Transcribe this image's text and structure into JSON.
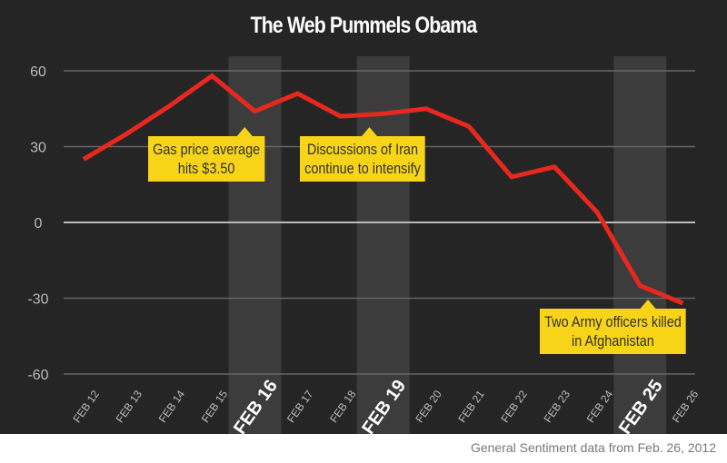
{
  "chart_data": {
    "type": "line",
    "title": "The Web Pummels Obama",
    "categories": [
      "FEB 12",
      "FEB 13",
      "FEB 14",
      "FEB 15",
      "FEB 16",
      "FEB 17",
      "FEB 18",
      "FEB 19",
      "FEB 20",
      "FEB 21",
      "FEB 22",
      "FEB 23",
      "FEB 24",
      "FEB 25",
      "FEB 26"
    ],
    "values": [
      25,
      35,
      46,
      58,
      44,
      51,
      42,
      43,
      45,
      38,
      18,
      22,
      4,
      -25,
      -32
    ],
    "highlighted": [
      "FEB 16",
      "FEB 19",
      "FEB 25"
    ],
    "yticks": [
      60,
      30,
      0,
      -30,
      -60
    ],
    "ylim": [
      -60,
      60
    ],
    "grid": true,
    "line_color": "#e8281e",
    "annotations": [
      {
        "date": "FEB 16",
        "text_line1": "Gas price average",
        "text_line2": "hits $3.50"
      },
      {
        "date": "FEB 19",
        "text_line1": "Discussions of Iran",
        "text_line2": "continue to intensify"
      },
      {
        "date": "FEB 25",
        "text_line1": "Two Army officers killed",
        "text_line2": "in Afghanistan"
      }
    ]
  },
  "footer": "General Sentiment data from Feb. 26, 2012"
}
